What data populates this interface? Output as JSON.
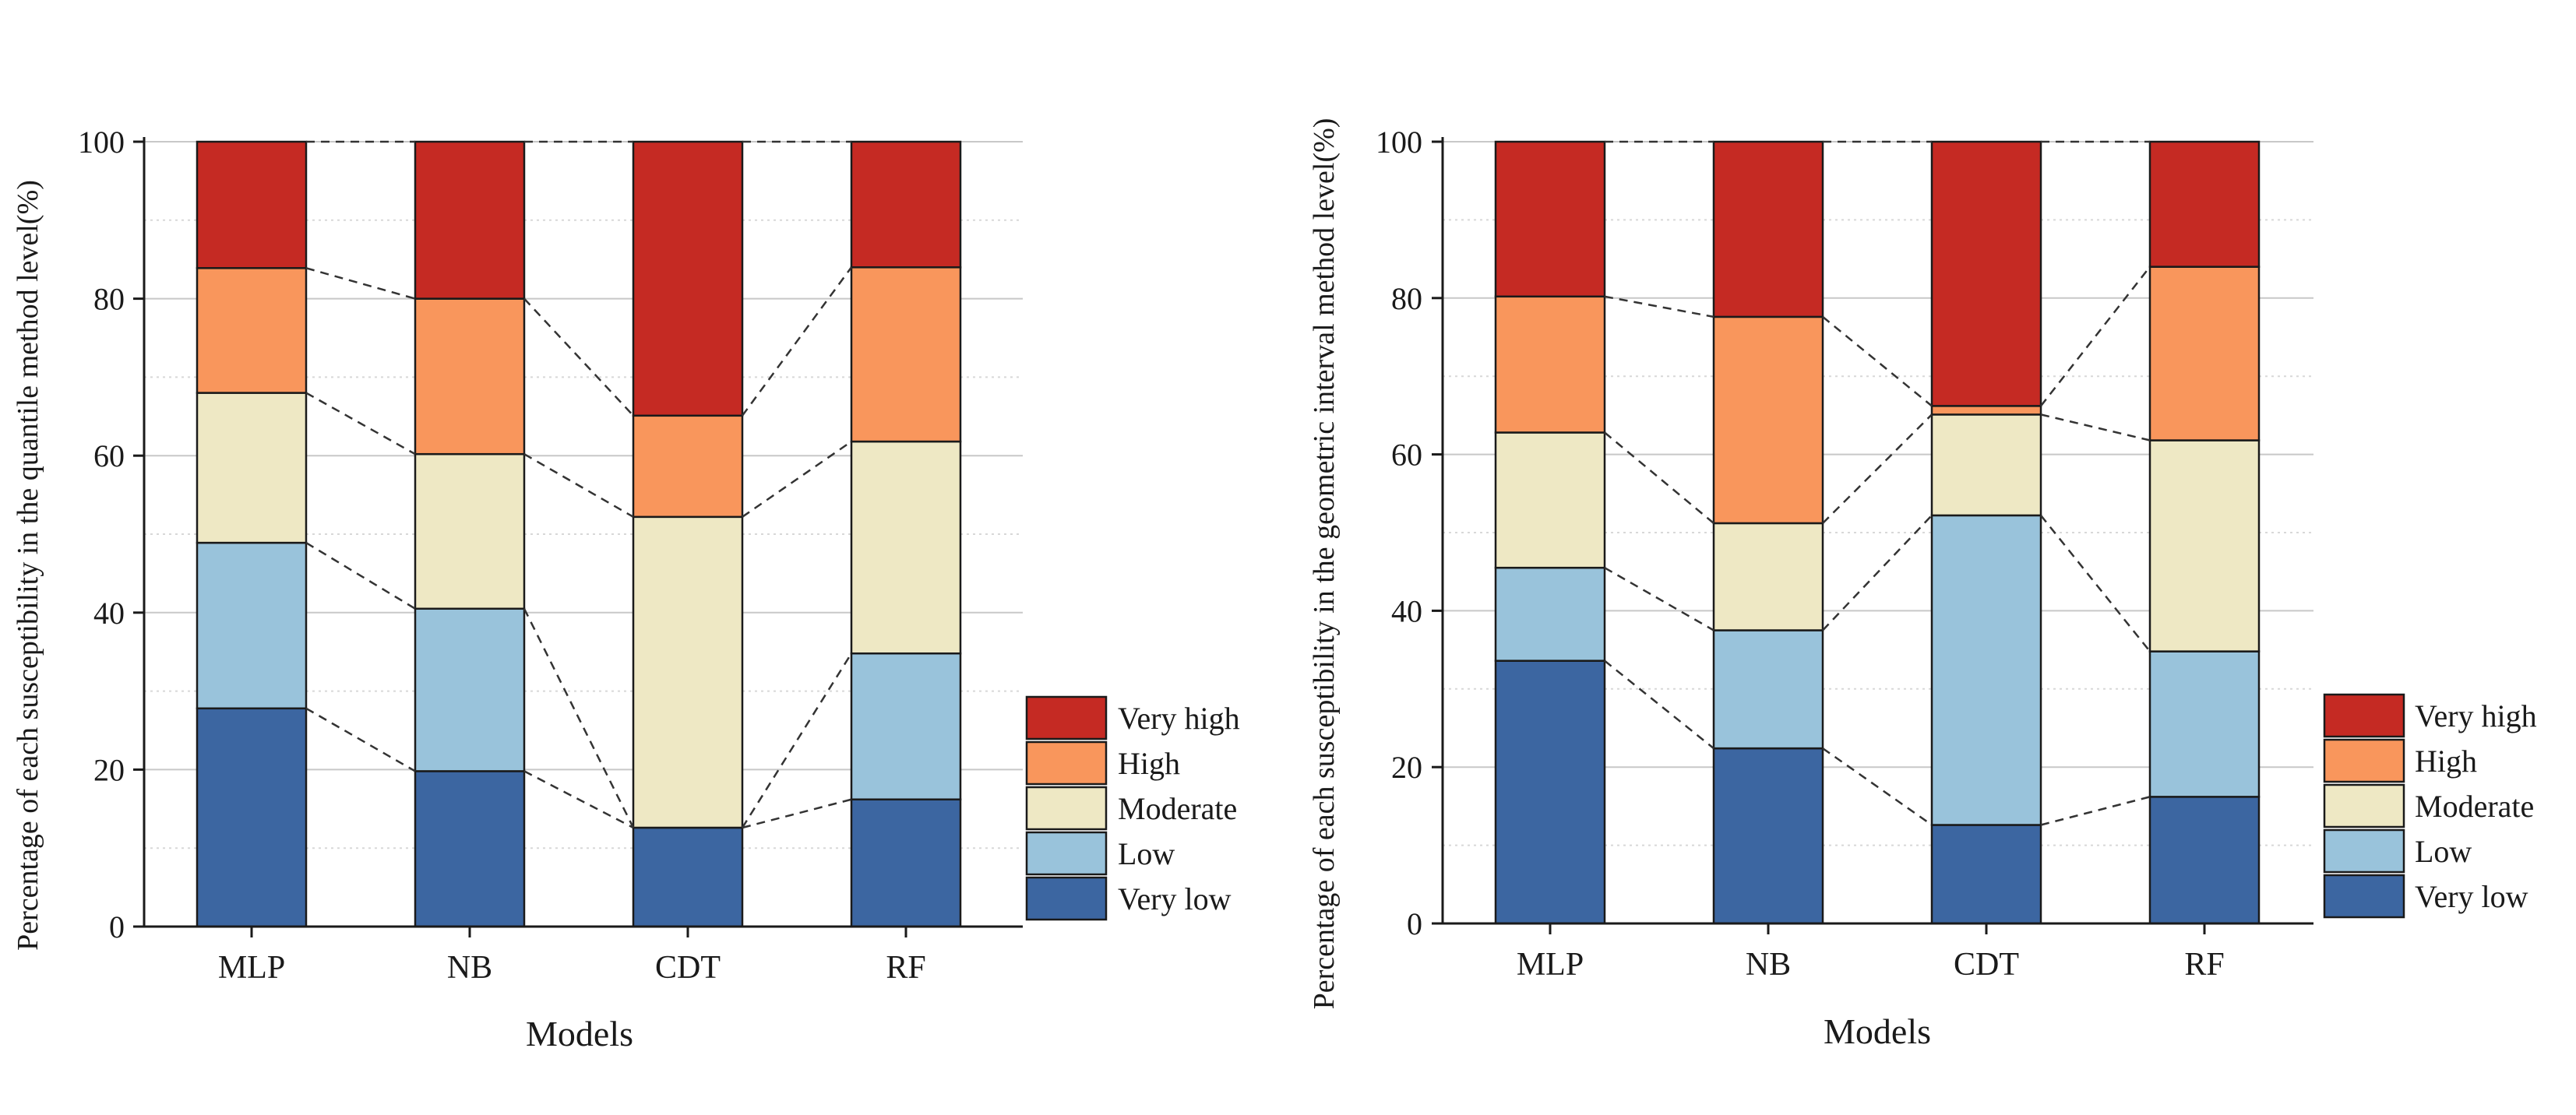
{
  "chart_data": [
    {
      "type": "bar",
      "stacked": true,
      "title": "",
      "xlabel": "Models",
      "ylabel": "Percentage of each susceptibility in the quantile method level(%)",
      "ylim": [
        0,
        100
      ],
      "yticks": [
        0,
        20,
        40,
        60,
        80,
        100
      ],
      "grid": true,
      "legend_position": "bottom-right",
      "connector_lines": true,
      "categories": [
        "MLP",
        "NB",
        "CDT",
        "RF"
      ],
      "series": [
        {
          "name": "Very low",
          "color": "#3C66A1",
          "values": [
            27.8,
            19.8,
            12.6,
            16.2
          ]
        },
        {
          "name": "Low",
          "color": "#99C3DB",
          "values": [
            21.1,
            20.7,
            0.0,
            18.6
          ]
        },
        {
          "name": "Moderate",
          "color": "#EEE8C4",
          "values": [
            19.1,
            19.7,
            39.6,
            27.0
          ]
        },
        {
          "name": "High",
          "color": "#F9965C",
          "values": [
            15.9,
            19.8,
            12.9,
            22.2
          ]
        },
        {
          "name": "Very high",
          "color": "#C52A23",
          "values": [
            16.1,
            20.0,
            34.9,
            16.0
          ]
        }
      ]
    },
    {
      "type": "bar",
      "stacked": true,
      "title": "",
      "xlabel": "Models",
      "ylabel": "Percentage of each susceptibility in the geometric interval method level(%)",
      "ylim": [
        0,
        100
      ],
      "yticks": [
        0,
        20,
        40,
        60,
        80,
        100
      ],
      "grid": true,
      "legend_position": "bottom-right",
      "connector_lines": true,
      "categories": [
        "MLP",
        "NB",
        "CDT",
        "RF"
      ],
      "series": [
        {
          "name": "Very low",
          "color": "#3C66A1",
          "values": [
            33.6,
            22.4,
            12.6,
            16.2
          ]
        },
        {
          "name": "Low",
          "color": "#99C3DB",
          "values": [
            11.9,
            15.1,
            39.6,
            18.6
          ]
        },
        {
          "name": "Moderate",
          "color": "#EEE8C4",
          "values": [
            17.3,
            13.7,
            12.9,
            27.0
          ]
        },
        {
          "name": "High",
          "color": "#F9965C",
          "values": [
            17.4,
            26.4,
            1.1,
            22.2
          ]
        },
        {
          "name": "Very high",
          "color": "#C52A23",
          "values": [
            19.8,
            22.4,
            33.8,
            16.0
          ]
        }
      ]
    }
  ]
}
